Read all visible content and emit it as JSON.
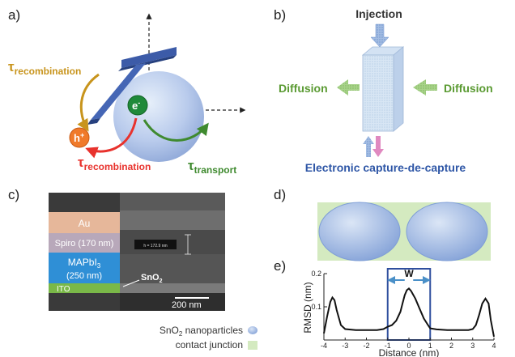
{
  "panels": {
    "a": {
      "label": "a)",
      "tau_recomb_top": {
        "sym": "τ",
        "sub": "recombination"
      },
      "tau_recomb_bottom": {
        "sym": "τ",
        "sub": "recombination"
      },
      "tau_transport": {
        "sym": "τ",
        "sub": "transport"
      },
      "hole": {
        "sym": "h",
        "sup": "+"
      },
      "electron": {
        "sym": "e",
        "sup": "-"
      }
    },
    "b": {
      "label": "b)",
      "injection": "Injection",
      "diffusion_left": "Diffusion",
      "diffusion_right": "Diffusion",
      "capture": "Electronic capture-de-capture"
    },
    "c": {
      "label": "c)",
      "layer_au": "Au",
      "layer_spiro": "Spiro (170 nm)",
      "layer_mapbi_main": "MAPbI",
      "layer_mapbi_sub": "3",
      "layer_mapbi_thickness": "(250 nm)",
      "layer_ito": "ITO",
      "sno2_main": "SnO",
      "sno2_sub": "2",
      "measure_text": "h = 172.9 nm",
      "scale_bar": "200 nm"
    },
    "d": {
      "label": "d)"
    },
    "e": {
      "label": "e)",
      "width_label": "W",
      "ylabel": "RMSD (nm)",
      "xlabel": "Distance (nm)"
    }
  },
  "legend": {
    "item1_main": "SnO",
    "item1_sub": "2",
    "item1_rest": " nanoparticles",
    "item2": "contact junction"
  },
  "colors": {
    "orange": "#c8941c",
    "red": "#e8322d",
    "green": "#3f8a2f",
    "blue_dark": "#2f4f9e",
    "diffusion_green": "#6aaa3a",
    "capture_blue": "#2e56a6"
  },
  "chart_data": {
    "type": "line",
    "xlabel": "Distance (nm)",
    "ylabel": "RMSD (nm)",
    "xlim": [
      -4,
      4
    ],
    "ylim": [
      0,
      0.2
    ],
    "xticks": [
      -4,
      -3,
      -2,
      -1,
      0,
      1,
      2,
      3,
      4
    ],
    "yticks": [
      0.1,
      0.2
    ],
    "grid": false,
    "series": [
      {
        "x": [
          -4,
          -3.85,
          -3.7,
          -3.6,
          -3.5,
          -3.4,
          -3.2,
          -3.0,
          -2.5,
          -2.0,
          -1.5,
          -1.2,
          -1.0,
          -0.8,
          -0.6,
          -0.4,
          -0.3,
          -0.2,
          -0.1,
          0.0,
          0.1,
          0.3,
          0.5,
          0.7,
          0.9,
          1.0,
          1.3,
          1.8,
          2.3,
          2.8,
          3.0,
          3.15,
          3.3,
          3.45,
          3.6,
          3.75,
          3.85,
          4.0
        ],
        "y": [
          0.02,
          0.07,
          0.115,
          0.128,
          0.12,
          0.09,
          0.045,
          0.033,
          0.03,
          0.03,
          0.03,
          0.033,
          0.04,
          0.045,
          0.058,
          0.085,
          0.11,
          0.135,
          0.15,
          0.155,
          0.148,
          0.125,
          0.095,
          0.065,
          0.045,
          0.035,
          0.032,
          0.03,
          0.03,
          0.03,
          0.033,
          0.045,
          0.075,
          0.11,
          0.125,
          0.11,
          0.06,
          0.01
        ]
      }
    ]
  }
}
